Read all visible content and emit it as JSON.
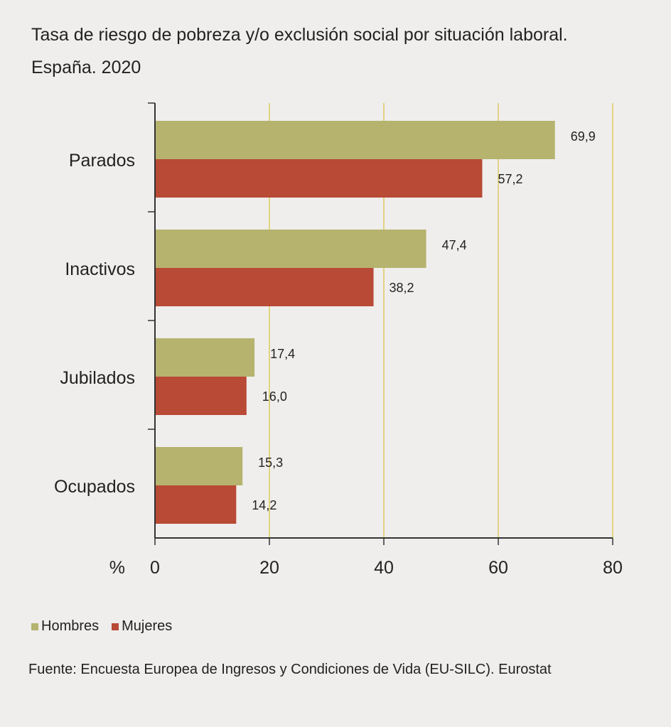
{
  "title": "Tasa de riesgo de pobreza y/o exclusión social por situación laboral. España. 2020",
  "colors": {
    "hombres": "#b6b36f",
    "mujeres": "#b84a36",
    "grid": "#e2d484",
    "axis": "#333333"
  },
  "chart_data": {
    "type": "bar",
    "orientation": "horizontal",
    "title": "Tasa de riesgo de pobreza y/o exclusión social por situación laboral. España. 2020",
    "categories": [
      "Parados",
      "Inactivos",
      "Jubilados",
      "Ocupados"
    ],
    "series": [
      {
        "name": "Hombres",
        "values": [
          69.9,
          47.4,
          17.4,
          15.3
        ],
        "labels": [
          "69,9",
          "47,4",
          "17,4",
          "15,3"
        ]
      },
      {
        "name": "Mujeres",
        "values": [
          57.2,
          38.2,
          16.0,
          14.2
        ],
        "labels": [
          "57,2",
          "38,2",
          "16,0",
          "14,2"
        ]
      }
    ],
    "xlabel": "%",
    "xlim": [
      0,
      80
    ],
    "xticks": [
      "0",
      "20",
      "40",
      "60",
      "80"
    ],
    "grid": true,
    "legend": "bottom-left"
  },
  "legend": {
    "hombres": "Hombres",
    "mujeres": "Mujeres"
  },
  "source": "Fuente: Encuesta Europea de Ingresos y Condiciones de Vida (EU-SILC). Eurostat"
}
